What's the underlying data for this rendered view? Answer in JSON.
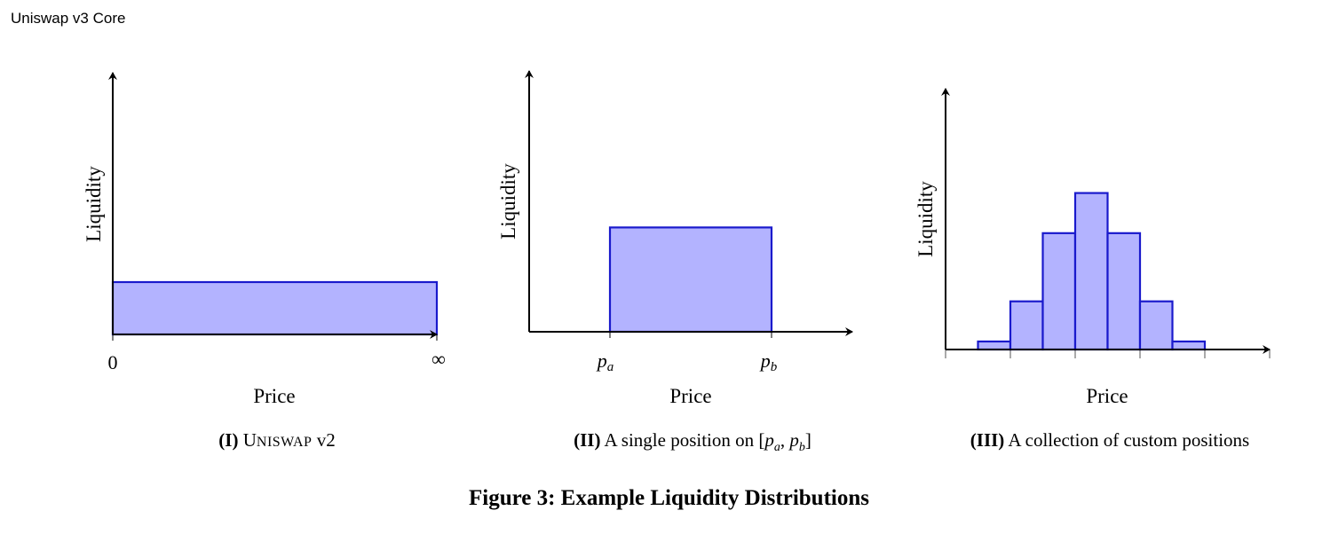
{
  "header": {
    "running_title": "Uniswap v3 Core"
  },
  "colors": {
    "bar_fill": "#b3b3ff",
    "bar_stroke": "#1a1acc",
    "axis": "#000000"
  },
  "chart_data": [
    {
      "type": "bar",
      "ylabel": "Liquidity",
      "xlabel": "Price",
      "x_tick_labels": [
        "0",
        "∞"
      ],
      "caption_number": "(I)",
      "caption_text_first": "U",
      "caption_text_rest": "NISWAP",
      "caption_text_suffix": " v2",
      "bars": [
        {
          "x_start": 0,
          "x_end": 1,
          "value": 1
        }
      ],
      "xlim": [
        0,
        1
      ],
      "ylim": [
        0,
        5
      ]
    },
    {
      "type": "bar",
      "ylabel": "Liquidity",
      "xlabel": "Price",
      "x_tick_labels": [
        "p",
        "a",
        "p",
        "b"
      ],
      "caption_number": "(II)",
      "caption_text": " A single position on ",
      "bars": [
        {
          "x_start": 0.25,
          "x_end": 0.75,
          "value": 2
        }
      ],
      "xlim": [
        0,
        1
      ],
      "ylim": [
        0,
        5
      ]
    },
    {
      "type": "bar",
      "ylabel": "Liquidity",
      "xlabel": "Price",
      "caption_number": "(III)",
      "caption_text": " A collection of custom positions",
      "bars": [
        {
          "x_start": 1,
          "x_end": 2,
          "value": 0.2
        },
        {
          "x_start": 2,
          "x_end": 3,
          "value": 1.2
        },
        {
          "x_start": 3,
          "x_end": 4,
          "value": 2.9
        },
        {
          "x_start": 4,
          "x_end": 5,
          "value": 3.9
        },
        {
          "x_start": 5,
          "x_end": 6,
          "value": 2.9
        },
        {
          "x_start": 6,
          "x_end": 7,
          "value": 1.2
        },
        {
          "x_start": 7,
          "x_end": 8,
          "value": 0.2
        }
      ],
      "xlim": [
        0,
        10
      ],
      "ylim": [
        0,
        6.5
      ]
    }
  ],
  "figure_caption": "Figure 3: Example Liquidity Distributions"
}
